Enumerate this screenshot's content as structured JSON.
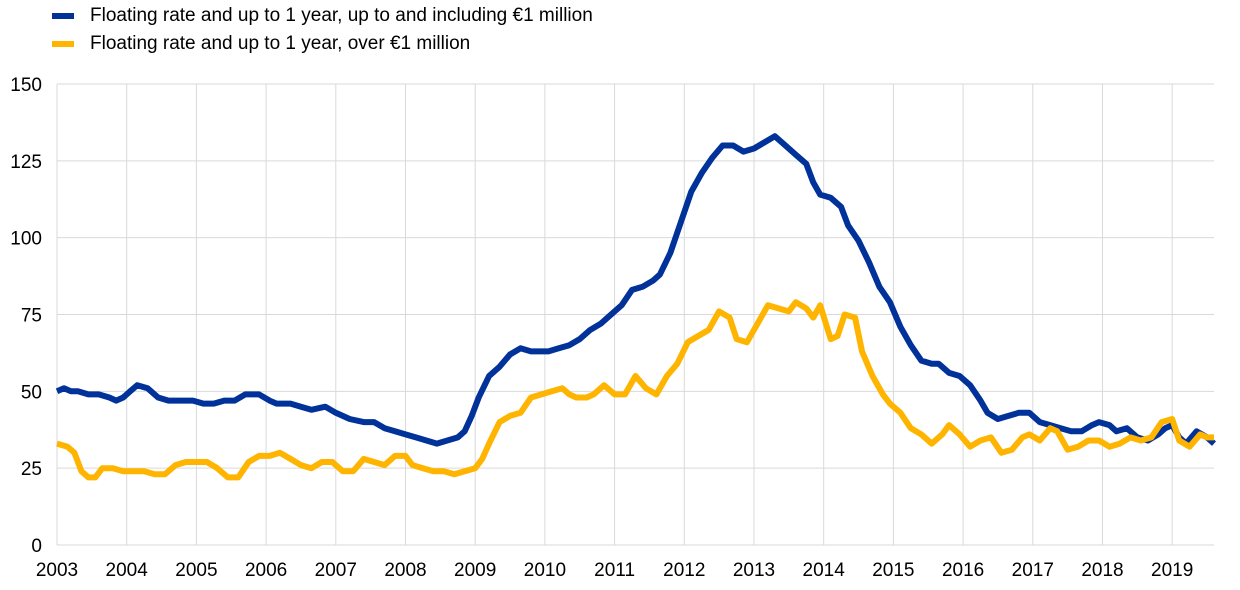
{
  "legend": {
    "series1_label": "Floating rate and up to 1 year, up to and including €1 million",
    "series2_label": "Floating rate and up to 1 year, over €1 million"
  },
  "chart_data": {
    "type": "line",
    "title": "",
    "xlabel": "",
    "ylabel": "",
    "xlim": [
      2003,
      2019.6
    ],
    "ylim": [
      0,
      150
    ],
    "y_ticks": [
      0,
      25,
      50,
      75,
      100,
      125,
      150
    ],
    "x_ticks": [
      "2003",
      "2004",
      "2005",
      "2006",
      "2007",
      "2008",
      "2009",
      "2010",
      "2011",
      "2012",
      "2013",
      "2014",
      "2015",
      "2016",
      "2017",
      "2018",
      "2019"
    ],
    "grid": true,
    "legend_position": "top-left",
    "series": [
      {
        "name": "Floating rate and up to 1 year, up to and including €1 million",
        "color": "#003299",
        "points": [
          [
            2003.0,
            50
          ],
          [
            2003.1,
            51
          ],
          [
            2003.2,
            50
          ],
          [
            2003.3,
            50
          ],
          [
            2003.45,
            49
          ],
          [
            2003.6,
            49
          ],
          [
            2003.75,
            48
          ],
          [
            2003.85,
            47
          ],
          [
            2003.95,
            48
          ],
          [
            2004.05,
            50
          ],
          [
            2004.15,
            52
          ],
          [
            2004.3,
            51
          ],
          [
            2004.45,
            48
          ],
          [
            2004.6,
            47
          ],
          [
            2004.8,
            47
          ],
          [
            2004.95,
            47
          ],
          [
            2005.1,
            46
          ],
          [
            2005.25,
            46
          ],
          [
            2005.4,
            47
          ],
          [
            2005.55,
            47
          ],
          [
            2005.7,
            49
          ],
          [
            2005.9,
            49
          ],
          [
            2006.05,
            47
          ],
          [
            2006.15,
            46
          ],
          [
            2006.35,
            46
          ],
          [
            2006.5,
            45
          ],
          [
            2006.65,
            44
          ],
          [
            2006.85,
            45
          ],
          [
            2007.0,
            43
          ],
          [
            2007.2,
            41
          ],
          [
            2007.4,
            40
          ],
          [
            2007.55,
            40
          ],
          [
            2007.7,
            38
          ],
          [
            2007.85,
            37
          ],
          [
            2008.0,
            36
          ],
          [
            2008.15,
            35
          ],
          [
            2008.3,
            34
          ],
          [
            2008.45,
            33
          ],
          [
            2008.6,
            34
          ],
          [
            2008.75,
            35
          ],
          [
            2008.85,
            37
          ],
          [
            2008.95,
            42
          ],
          [
            2009.05,
            48
          ],
          [
            2009.2,
            55
          ],
          [
            2009.35,
            58
          ],
          [
            2009.5,
            62
          ],
          [
            2009.65,
            64
          ],
          [
            2009.8,
            63
          ],
          [
            2009.9,
            63
          ],
          [
            2010.05,
            63
          ],
          [
            2010.2,
            64
          ],
          [
            2010.35,
            65
          ],
          [
            2010.5,
            67
          ],
          [
            2010.65,
            70
          ],
          [
            2010.8,
            72
          ],
          [
            2010.95,
            75
          ],
          [
            2011.1,
            78
          ],
          [
            2011.25,
            83
          ],
          [
            2011.4,
            84
          ],
          [
            2011.55,
            86
          ],
          [
            2011.65,
            88
          ],
          [
            2011.8,
            95
          ],
          [
            2011.95,
            105
          ],
          [
            2012.1,
            115
          ],
          [
            2012.25,
            121
          ],
          [
            2012.4,
            126
          ],
          [
            2012.55,
            130
          ],
          [
            2012.7,
            130
          ],
          [
            2012.85,
            128
          ],
          [
            2013.0,
            129
          ],
          [
            2013.15,
            131
          ],
          [
            2013.3,
            133
          ],
          [
            2013.45,
            130
          ],
          [
            2013.6,
            127
          ],
          [
            2013.75,
            124
          ],
          [
            2013.85,
            118
          ],
          [
            2013.95,
            114
          ],
          [
            2014.1,
            113
          ],
          [
            2014.25,
            110
          ],
          [
            2014.35,
            104
          ],
          [
            2014.5,
            99
          ],
          [
            2014.65,
            92
          ],
          [
            2014.8,
            84
          ],
          [
            2014.95,
            79
          ],
          [
            2015.1,
            71
          ],
          [
            2015.25,
            65
          ],
          [
            2015.4,
            60
          ],
          [
            2015.55,
            59
          ],
          [
            2015.65,
            59
          ],
          [
            2015.8,
            56
          ],
          [
            2015.95,
            55
          ],
          [
            2016.1,
            52
          ],
          [
            2016.25,
            47
          ],
          [
            2016.35,
            43
          ],
          [
            2016.5,
            41
          ],
          [
            2016.65,
            42
          ],
          [
            2016.8,
            43
          ],
          [
            2016.95,
            43
          ],
          [
            2017.1,
            40
          ],
          [
            2017.25,
            39
          ],
          [
            2017.4,
            38
          ],
          [
            2017.55,
            37
          ],
          [
            2017.7,
            37
          ],
          [
            2017.85,
            39
          ],
          [
            2017.95,
            40
          ],
          [
            2018.1,
            39
          ],
          [
            2018.2,
            37
          ],
          [
            2018.35,
            38
          ],
          [
            2018.5,
            35
          ],
          [
            2018.65,
            34
          ],
          [
            2018.8,
            36
          ],
          [
            2018.9,
            38
          ],
          [
            2019.0,
            39
          ],
          [
            2019.1,
            35
          ],
          [
            2019.2,
            33
          ],
          [
            2019.35,
            37
          ],
          [
            2019.5,
            35
          ],
          [
            2019.6,
            33
          ]
        ]
      },
      {
        "name": "Floating rate and up to 1 year, over €1 million",
        "color": "#FFB400",
        "points": [
          [
            2003.0,
            33
          ],
          [
            2003.15,
            32
          ],
          [
            2003.25,
            30
          ],
          [
            2003.35,
            24
          ],
          [
            2003.45,
            22
          ],
          [
            2003.55,
            22
          ],
          [
            2003.65,
            25
          ],
          [
            2003.8,
            25
          ],
          [
            2003.95,
            24
          ],
          [
            2004.1,
            24
          ],
          [
            2004.25,
            24
          ],
          [
            2004.4,
            23
          ],
          [
            2004.55,
            23
          ],
          [
            2004.7,
            26
          ],
          [
            2004.85,
            27
          ],
          [
            2005.0,
            27
          ],
          [
            2005.15,
            27
          ],
          [
            2005.3,
            25
          ],
          [
            2005.45,
            22
          ],
          [
            2005.6,
            22
          ],
          [
            2005.75,
            27
          ],
          [
            2005.9,
            29
          ],
          [
            2006.05,
            29
          ],
          [
            2006.2,
            30
          ],
          [
            2006.35,
            28
          ],
          [
            2006.5,
            26
          ],
          [
            2006.65,
            25
          ],
          [
            2006.8,
            27
          ],
          [
            2006.95,
            27
          ],
          [
            2007.1,
            24
          ],
          [
            2007.25,
            24
          ],
          [
            2007.4,
            28
          ],
          [
            2007.55,
            27
          ],
          [
            2007.7,
            26
          ],
          [
            2007.85,
            29
          ],
          [
            2008.0,
            29
          ],
          [
            2008.1,
            26
          ],
          [
            2008.25,
            25
          ],
          [
            2008.4,
            24
          ],
          [
            2008.55,
            24
          ],
          [
            2008.7,
            23
          ],
          [
            2008.85,
            24
          ],
          [
            2009.0,
            25
          ],
          [
            2009.1,
            28
          ],
          [
            2009.2,
            33
          ],
          [
            2009.35,
            40
          ],
          [
            2009.5,
            42
          ],
          [
            2009.65,
            43
          ],
          [
            2009.8,
            48
          ],
          [
            2009.95,
            49
          ],
          [
            2010.1,
            50
          ],
          [
            2010.25,
            51
          ],
          [
            2010.35,
            49
          ],
          [
            2010.45,
            48
          ],
          [
            2010.6,
            48
          ],
          [
            2010.7,
            49
          ],
          [
            2010.85,
            52
          ],
          [
            2011.0,
            49
          ],
          [
            2011.15,
            49
          ],
          [
            2011.3,
            55
          ],
          [
            2011.45,
            51
          ],
          [
            2011.6,
            49
          ],
          [
            2011.75,
            55
          ],
          [
            2011.9,
            59
          ],
          [
            2012.05,
            66
          ],
          [
            2012.2,
            68
          ],
          [
            2012.35,
            70
          ],
          [
            2012.5,
            76
          ],
          [
            2012.65,
            74
          ],
          [
            2012.75,
            67
          ],
          [
            2012.9,
            66
          ],
          [
            2013.05,
            72
          ],
          [
            2013.2,
            78
          ],
          [
            2013.35,
            77
          ],
          [
            2013.5,
            76
          ],
          [
            2013.6,
            79
          ],
          [
            2013.75,
            77
          ],
          [
            2013.85,
            74
          ],
          [
            2013.95,
            78
          ],
          [
            2014.1,
            67
          ],
          [
            2014.2,
            68
          ],
          [
            2014.3,
            75
          ],
          [
            2014.45,
            74
          ],
          [
            2014.55,
            63
          ],
          [
            2014.7,
            55
          ],
          [
            2014.85,
            49
          ],
          [
            2014.95,
            46
          ],
          [
            2015.1,
            43
          ],
          [
            2015.25,
            38
          ],
          [
            2015.4,
            36
          ],
          [
            2015.55,
            33
          ],
          [
            2015.7,
            36
          ],
          [
            2015.8,
            39
          ],
          [
            2015.95,
            36
          ],
          [
            2016.1,
            32
          ],
          [
            2016.25,
            34
          ],
          [
            2016.4,
            35
          ],
          [
            2016.55,
            30
          ],
          [
            2016.7,
            31
          ],
          [
            2016.85,
            35
          ],
          [
            2016.95,
            36
          ],
          [
            2017.1,
            34
          ],
          [
            2017.25,
            38
          ],
          [
            2017.35,
            37
          ],
          [
            2017.5,
            31
          ],
          [
            2017.65,
            32
          ],
          [
            2017.8,
            34
          ],
          [
            2017.95,
            34
          ],
          [
            2018.1,
            32
          ],
          [
            2018.25,
            33
          ],
          [
            2018.4,
            35
          ],
          [
            2018.55,
            34
          ],
          [
            2018.7,
            35
          ],
          [
            2018.85,
            40
          ],
          [
            2019.0,
            41
          ],
          [
            2019.1,
            34
          ],
          [
            2019.25,
            32
          ],
          [
            2019.4,
            36
          ],
          [
            2019.5,
            35
          ],
          [
            2019.6,
            35
          ]
        ]
      }
    ]
  }
}
